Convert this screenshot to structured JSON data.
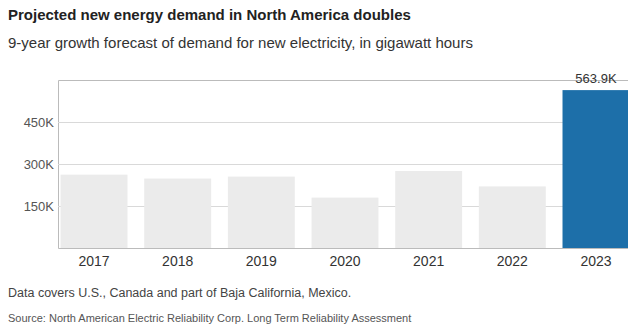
{
  "chart_data": {
    "type": "bar",
    "title": "Projected new energy demand in North America doubles",
    "subtitle": "9-year growth forecast of demand for new electricity, in gigawatt hours",
    "note": "Data covers U.S., Canada and part of Baja California, Mexico.",
    "source": "Source: North American Electric Reliability Corp. Long Term Reliability Assessment",
    "categories": [
      "2017",
      "2018",
      "2019",
      "2020",
      "2021",
      "2022",
      "2023"
    ],
    "values": [
      262000,
      248000,
      255000,
      180000,
      275000,
      220000,
      563900
    ],
    "value_labels": [
      null,
      null,
      null,
      null,
      null,
      null,
      "563.9K"
    ],
    "colors": [
      "#ebebeb",
      "#ebebeb",
      "#ebebeb",
      "#ebebeb",
      "#ebebeb",
      "#ebebeb",
      "#1d6fa9"
    ],
    "ylim": [
      0,
      600000
    ],
    "yticks": [
      {
        "value": 150000,
        "label": "150K"
      },
      {
        "value": 300000,
        "label": "300K"
      },
      {
        "value": 450000,
        "label": "450K"
      }
    ],
    "grid": true
  }
}
